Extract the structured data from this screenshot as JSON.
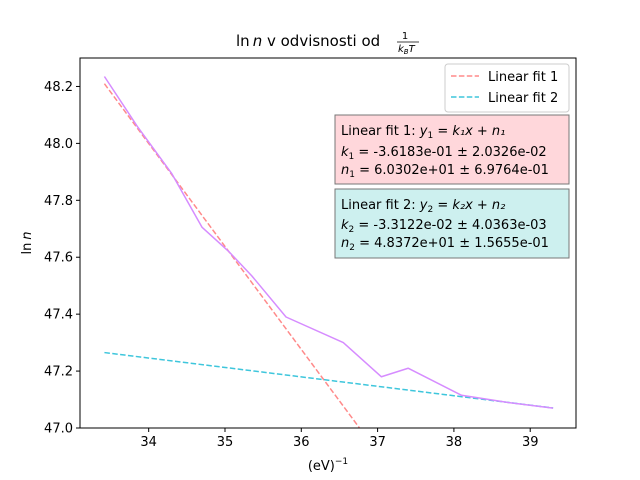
{
  "chart_data": {
    "type": "line",
    "title": "ln n v odvisnosti od 1/(k_B T)",
    "title_parts": {
      "main": "ln",
      "var": "n",
      "rest": " v odvisnosti od ",
      "frac_num": "1",
      "frac_den": "k",
      "frac_den_sub": "B",
      "frac_den_rest": "T"
    },
    "xlabel": "(eV)",
    "xlabel_sup": "−1",
    "ylabel": "ln",
    "ylabel_var": "n",
    "xlim": [
      33.1,
      39.6
    ],
    "ylim": [
      47.0,
      48.3
    ],
    "xticks": [
      34,
      35,
      36,
      37,
      38,
      39
    ],
    "yticks": [
      47.0,
      47.2,
      47.4,
      47.6,
      47.8,
      48.0,
      48.2
    ],
    "xtick_labels": [
      "34",
      "35",
      "36",
      "37",
      "38",
      "39"
    ],
    "ytick_labels": [
      "47.0",
      "47.2",
      "47.4",
      "47.6",
      "47.8",
      "48.0",
      "48.2"
    ],
    "grid": false,
    "legend_position": "top-right",
    "series": [
      {
        "style": "solid",
        "color": "#d68cff",
        "x": [
          33.42,
          33.85,
          34.3,
          34.7,
          35.05,
          35.35,
          35.8,
          36.55,
          37.05,
          37.4,
          38.1,
          38.7,
          39.3
        ],
        "y": [
          48.235,
          48.06,
          47.895,
          47.705,
          47.62,
          47.535,
          47.39,
          47.3,
          47.18,
          47.21,
          47.115,
          47.09,
          47.07
        ]
      },
      {
        "name": "Linear fit 1",
        "style": "dashed",
        "color": "#ff8a8a",
        "slope": -0.36183,
        "intercept": 60.302,
        "x_range": [
          33.42,
          36.76
        ]
      },
      {
        "name": "Linear fit 2",
        "style": "dashed",
        "color": "#3ec6dc",
        "slope": -0.033122,
        "intercept": 48.372,
        "x_range": [
          33.42,
          39.3
        ]
      }
    ],
    "annotations": [
      {
        "box_color": "#ffd7db",
        "lines": [
          {
            "prefix": "Linear fit 1: ",
            "math": "y",
            "math_sub": "1",
            "rest": " = k₁x + n₁"
          },
          {
            "math": "k",
            "math_sub": "1",
            "rest": " = -3.6183e-01 ± 2.0326e-02"
          },
          {
            "math": "n",
            "math_sub": "1",
            "rest": " = 6.0302e+01 ± 6.9764e-01"
          }
        ]
      },
      {
        "box_color": "#cdf0ef",
        "lines": [
          {
            "prefix": "Linear fit 2: ",
            "math": "y",
            "math_sub": "2",
            "rest": " = k₂x + n₂"
          },
          {
            "math": "k",
            "math_sub": "2",
            "rest": " = -3.3122e-02 ± 4.0363e-03"
          },
          {
            "math": "n",
            "math_sub": "2",
            "rest": " = 4.8372e+01 ± 1.5655e-01"
          }
        ]
      }
    ]
  }
}
